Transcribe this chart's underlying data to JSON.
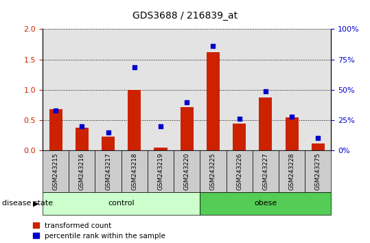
{
  "title": "GDS3688 / 216839_at",
  "samples": [
    "GSM243215",
    "GSM243216",
    "GSM243217",
    "GSM243218",
    "GSM243219",
    "GSM243220",
    "GSM243225",
    "GSM243226",
    "GSM243227",
    "GSM243228",
    "GSM243275"
  ],
  "transformed_count": [
    0.68,
    0.38,
    0.23,
    1.0,
    0.05,
    0.72,
    1.62,
    0.45,
    0.87,
    0.55,
    0.12
  ],
  "percentile_rank": [
    0.66,
    0.4,
    0.3,
    1.37,
    0.4,
    0.8,
    1.72,
    0.53,
    0.98,
    0.56,
    0.21
  ],
  "red_color": "#cc2200",
  "blue_color": "#0000cc",
  "n_control": 6,
  "n_obese": 5,
  "control_label": "control",
  "obese_label": "obese",
  "disease_state_label": "disease state",
  "legend_red": "transformed count",
  "legend_blue": "percentile rank within the sample",
  "ylim_left": [
    0,
    2
  ],
  "ylim_right": [
    0,
    100
  ],
  "yticks_left": [
    0,
    0.5,
    1.0,
    1.5,
    2.0
  ],
  "yticks_right": [
    0,
    25,
    50,
    75,
    100
  ],
  "bar_width": 0.5,
  "control_bg_light": "#ccffcc",
  "obese_bg": "#55cc55",
  "sample_bg": "#cccccc",
  "white": "#ffffff"
}
